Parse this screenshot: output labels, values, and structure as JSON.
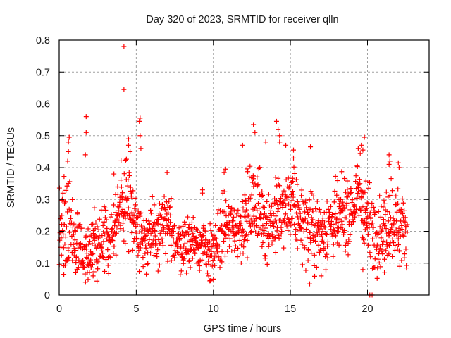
{
  "chart_data": {
    "type": "scatter",
    "title": "Day 320 of 2023, SRMTID for receiver qlln",
    "xlabel": "GPS time / hours",
    "ylabel": "SRMTID / TECUs",
    "xlim": [
      0,
      24
    ],
    "ylim": [
      0,
      0.8
    ],
    "xticks": [
      0,
      5,
      10,
      15,
      20
    ],
    "xtick_labels": [
      "0",
      "5",
      "10",
      "15",
      "20"
    ],
    "yticks": [
      0,
      0.1,
      0.2,
      0.3,
      0.4,
      0.5,
      0.6,
      0.7,
      0.8
    ],
    "ytick_labels": [
      "0",
      "0.1",
      "0.2",
      "0.3",
      "0.4",
      "0.5",
      "0.6",
      "0.7",
      "0.8"
    ],
    "grid": true,
    "marker": "+",
    "color": "#ff0000",
    "series": [
      {
        "name": "SRMTID",
        "envelope": [
          {
            "x": 0.0,
            "mean": 0.2,
            "spread": 0.09
          },
          {
            "x": 0.5,
            "mean": 0.22,
            "spread": 0.11
          },
          {
            "x": 1.0,
            "mean": 0.18,
            "spread": 0.07
          },
          {
            "x": 1.5,
            "mean": 0.13,
            "spread": 0.05
          },
          {
            "x": 2.0,
            "mean": 0.15,
            "spread": 0.06
          },
          {
            "x": 2.5,
            "mean": 0.14,
            "spread": 0.06
          },
          {
            "x": 3.0,
            "mean": 0.18,
            "spread": 0.07
          },
          {
            "x": 3.5,
            "mean": 0.2,
            "spread": 0.07
          },
          {
            "x": 4.0,
            "mean": 0.28,
            "spread": 0.08
          },
          {
            "x": 4.5,
            "mean": 0.3,
            "spread": 0.08
          },
          {
            "x": 5.0,
            "mean": 0.23,
            "spread": 0.06
          },
          {
            "x": 5.5,
            "mean": 0.17,
            "spread": 0.05
          },
          {
            "x": 6.0,
            "mean": 0.18,
            "spread": 0.06
          },
          {
            "x": 6.5,
            "mean": 0.2,
            "spread": 0.06
          },
          {
            "x": 7.0,
            "mean": 0.22,
            "spread": 0.06
          },
          {
            "x": 7.5,
            "mean": 0.17,
            "spread": 0.05
          },
          {
            "x": 8.0,
            "mean": 0.16,
            "spread": 0.05
          },
          {
            "x": 8.5,
            "mean": 0.17,
            "spread": 0.05
          },
          {
            "x": 9.0,
            "mean": 0.17,
            "spread": 0.05
          },
          {
            "x": 9.5,
            "mean": 0.14,
            "spread": 0.05
          },
          {
            "x": 10.0,
            "mean": 0.13,
            "spread": 0.05
          },
          {
            "x": 10.5,
            "mean": 0.2,
            "spread": 0.07
          },
          {
            "x": 11.0,
            "mean": 0.22,
            "spread": 0.06
          },
          {
            "x": 11.5,
            "mean": 0.2,
            "spread": 0.06
          },
          {
            "x": 12.0,
            "mean": 0.23,
            "spread": 0.07
          },
          {
            "x": 12.5,
            "mean": 0.28,
            "spread": 0.08
          },
          {
            "x": 13.0,
            "mean": 0.27,
            "spread": 0.08
          },
          {
            "x": 13.5,
            "mean": 0.22,
            "spread": 0.07
          },
          {
            "x": 14.0,
            "mean": 0.24,
            "spread": 0.07
          },
          {
            "x": 14.5,
            "mean": 0.26,
            "spread": 0.07
          },
          {
            "x": 15.0,
            "mean": 0.28,
            "spread": 0.07
          },
          {
            "x": 15.5,
            "mean": 0.25,
            "spread": 0.07
          },
          {
            "x": 16.0,
            "mean": 0.22,
            "spread": 0.07
          },
          {
            "x": 16.5,
            "mean": 0.2,
            "spread": 0.07
          },
          {
            "x": 17.0,
            "mean": 0.2,
            "spread": 0.07
          },
          {
            "x": 17.5,
            "mean": 0.22,
            "spread": 0.07
          },
          {
            "x": 18.0,
            "mean": 0.22,
            "spread": 0.07
          },
          {
            "x": 18.5,
            "mean": 0.25,
            "spread": 0.07
          },
          {
            "x": 19.0,
            "mean": 0.27,
            "spread": 0.07
          },
          {
            "x": 19.5,
            "mean": 0.32,
            "spread": 0.08
          },
          {
            "x": 20.0,
            "mean": 0.24,
            "spread": 0.07
          },
          {
            "x": 20.5,
            "mean": 0.2,
            "spread": 0.07
          },
          {
            "x": 21.0,
            "mean": 0.2,
            "spread": 0.07
          },
          {
            "x": 21.5,
            "mean": 0.25,
            "spread": 0.08
          },
          {
            "x": 22.0,
            "mean": 0.22,
            "spread": 0.07
          },
          {
            "x": 22.6,
            "mean": 0.2,
            "spread": 0.06
          }
        ],
        "notable_points": [
          [
            4.2,
            0.78
          ],
          [
            4.2,
            0.645
          ],
          [
            1.75,
            0.56
          ],
          [
            1.75,
            0.51
          ],
          [
            1.7,
            0.44
          ],
          [
            5.25,
            0.555
          ],
          [
            5.2,
            0.545
          ],
          [
            5.25,
            0.5
          ],
          [
            5.3,
            0.46
          ],
          [
            4.5,
            0.49
          ],
          [
            4.5,
            0.47
          ],
          [
            4.6,
            0.45
          ],
          [
            0.65,
            0.495
          ],
          [
            0.6,
            0.48
          ],
          [
            0.6,
            0.45
          ],
          [
            0.55,
            0.42
          ],
          [
            12.6,
            0.535
          ],
          [
            12.7,
            0.51
          ],
          [
            14.1,
            0.545
          ],
          [
            14.2,
            0.52
          ],
          [
            14.3,
            0.48
          ],
          [
            14.7,
            0.47
          ],
          [
            15.2,
            0.455
          ],
          [
            15.2,
            0.43
          ],
          [
            11.9,
            0.47
          ],
          [
            13.4,
            0.48
          ],
          [
            14.3,
            0.5
          ],
          [
            19.8,
            0.495
          ],
          [
            19.6,
            0.47
          ],
          [
            19.4,
            0.46
          ],
          [
            19.7,
            0.455
          ],
          [
            21.4,
            0.44
          ],
          [
            21.45,
            0.42
          ],
          [
            21.4,
            0.41
          ],
          [
            22.0,
            0.415
          ],
          [
            22.05,
            0.4
          ],
          [
            16.3,
            0.465
          ],
          [
            16.25,
            0.035
          ],
          [
            0.3,
            0.065
          ],
          [
            3.55,
            0.38
          ],
          [
            2.2,
            0.06
          ],
          [
            9.8,
            0.045
          ],
          [
            9.7,
            0.06
          ],
          [
            10.0,
            0.05
          ],
          [
            7.0,
            0.385
          ],
          [
            9.3,
            0.33
          ],
          [
            9.3,
            0.32
          ],
          [
            10.7,
            0.385
          ],
          [
            10.8,
            0.395
          ],
          [
            20.15,
            0.0
          ],
          [
            20.3,
            0.0
          ],
          [
            17.0,
            0.06
          ],
          [
            19.7,
            0.08
          ],
          [
            21.1,
            0.07
          ],
          [
            22.1,
            0.09
          ]
        ]
      }
    ]
  }
}
